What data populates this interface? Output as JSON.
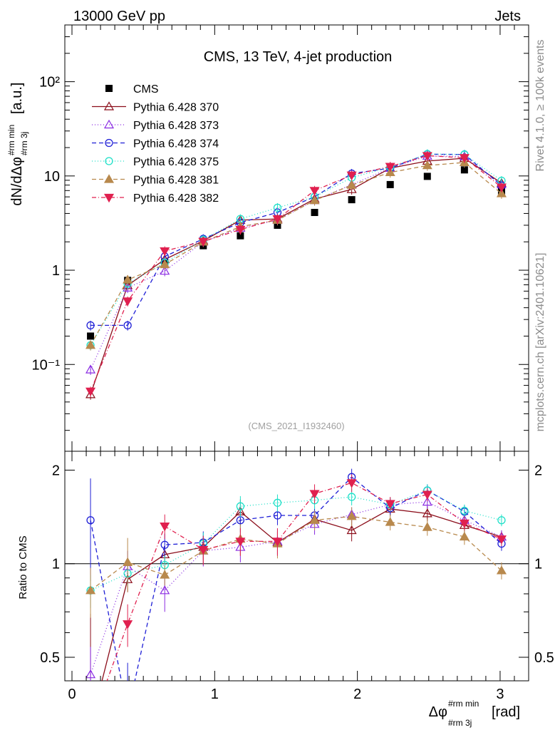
{
  "header": {
    "left": "13000 GeV pp",
    "right": "Jets"
  },
  "side_labels": {
    "rivet": "Rivet 4.1.0, ≥ 100k events",
    "mcplots": "mcplots.cern.ch [arXiv:2401.10621]"
  },
  "chart_data": {
    "type": "scatter",
    "title": "CMS, 13 TeV, 4-jet production",
    "analysis_tag": "(CMS_2021_I1932460)",
    "xlabel": "Δφ^{#rm min}_{#rm 3j} [rad]",
    "xlabel_main": "Δφ",
    "xlabel_sup": "#rm min",
    "xlabel_sub": "#rm 3j",
    "xlabel_unit": "[rad]",
    "ylabel": "dN/dΔφ^{#rm min}_{#rm 3j} [a.u.]",
    "ylabel_main": "dN/dΔφ",
    "ylabel_sup": "#rm min",
    "ylabel_sub": "#rm 3j",
    "ylabel_unit": "[a.u.]",
    "ratio_ylabel": "Ratio to CMS",
    "xlim": [
      -0.05,
      3.2
    ],
    "ylim": [
      0.012,
      400
    ],
    "ratio_ylim": [
      0.42,
      2.3
    ],
    "xticks": [
      0,
      1,
      2,
      3
    ],
    "xtick_labels": [
      "0",
      "1",
      "2",
      "3"
    ],
    "yticks": [
      0.1,
      1,
      10,
      100
    ],
    "ytick_labels": [
      "10⁻¹",
      "1",
      "10",
      "10²"
    ],
    "ratio_yticks": [
      0.5,
      1,
      2
    ],
    "ratio_ytick_labels": [
      "0.5",
      "1",
      "2"
    ],
    "ratio_ytick_labels_right": [
      "0.5",
      "1",
      "2"
    ],
    "x": [
      0.13,
      0.39,
      0.65,
      0.92,
      1.18,
      1.44,
      1.7,
      1.96,
      2.23,
      2.49,
      2.75,
      3.01
    ],
    "reference": {
      "name": "CMS",
      "values": [
        0.2,
        0.78,
        1.22,
        1.82,
        2.32,
        3.0,
        4.1,
        5.6,
        8.1,
        9.9,
        11.6,
        6.9
      ]
    },
    "series": [
      {
        "name": "Pythia 6.428 370",
        "color": "#8b0d1a",
        "marker": "triangle-up-open",
        "dash": "solid",
        "values": [
          0.048,
          0.69,
          1.3,
          2.05,
          3.4,
          3.5,
          5.7,
          7.2,
          12.1,
          14.4,
          15.4,
          8.4
        ],
        "ratio": [
          0.24,
          0.89,
          1.07,
          1.13,
          1.47,
          1.17,
          1.39,
          1.28,
          1.5,
          1.45,
          1.33,
          1.22
        ],
        "ratio_err": [
          0.45,
          0.08,
          0.07,
          0.1,
          0.14,
          0.1,
          0.1,
          0.1,
          0.08,
          0.08,
          0.07,
          0.06
        ]
      },
      {
        "name": "Pythia 6.428 373",
        "color": "#8a2be2",
        "marker": "triangle-up-open",
        "dash": "1,3",
        "values": [
          0.088,
          0.65,
          0.98,
          2.0,
          2.8,
          3.4,
          5.5,
          8.1,
          12.1,
          16.3,
          16.1,
          8.1
        ],
        "ratio": [
          0.44,
          0.98,
          0.82,
          1.1,
          1.13,
          1.18,
          1.34,
          1.44,
          1.55,
          1.58,
          1.38,
          1.22
        ],
        "ratio_err": [
          0.1,
          0.12,
          0.12,
          0.12,
          0.12,
          0.12,
          0.1,
          0.08,
          0.08,
          0.08,
          0.07,
          0.06
        ]
      },
      {
        "name": "Pythia 6.428 374",
        "color": "#1f1fd6",
        "marker": "circle-open",
        "dash": "6,4",
        "values": [
          0.26,
          0.26,
          1.4,
          2.15,
          3.2,
          4.1,
          6.0,
          10.6,
          12.1,
          17.0,
          16.9,
          7.9
        ],
        "ratio": [
          1.38,
          0.33,
          1.15,
          1.17,
          1.38,
          1.43,
          1.43,
          1.9,
          1.51,
          1.72,
          1.47,
          1.16
        ],
        "ratio_err": [
          0.5,
          0.15,
          0.1,
          0.1,
          0.12,
          0.1,
          0.1,
          0.12,
          0.08,
          0.08,
          0.07,
          0.06
        ]
      },
      {
        "name": "Pythia 6.428 375",
        "color": "#1ee0c8",
        "marker": "circle-open",
        "dash": "1,3",
        "values": [
          0.16,
          0.72,
          1.2,
          2.1,
          3.5,
          4.6,
          6.0,
          9.6,
          12.4,
          17.1,
          16.9,
          8.9
        ],
        "ratio": [
          0.82,
          0.93,
          0.99,
          1.16,
          1.53,
          1.57,
          1.6,
          1.64,
          1.55,
          1.72,
          1.48,
          1.38
        ],
        "ratio_err": [
          0.1,
          0.08,
          0.07,
          0.1,
          0.12,
          0.1,
          0.1,
          0.1,
          0.08,
          0.08,
          0.07,
          0.06
        ]
      },
      {
        "name": "Pythia 6.428 381",
        "color": "#b8894d",
        "marker": "triangle-up-filled",
        "dash": "6,4",
        "values": [
          0.16,
          0.79,
          1.15,
          2.0,
          2.9,
          3.4,
          5.5,
          8.0,
          10.9,
          12.9,
          13.9,
          6.5
        ],
        "ratio": [
          0.82,
          1.01,
          0.92,
          1.1,
          1.2,
          1.16,
          1.38,
          1.42,
          1.36,
          1.31,
          1.22,
          0.95
        ],
        "ratio_err": [
          0.15,
          0.2,
          0.07,
          0.1,
          0.14,
          0.12,
          0.1,
          0.1,
          0.08,
          0.08,
          0.07,
          0.06
        ]
      },
      {
        "name": "Pythia 6.428 382",
        "color": "#e0204f",
        "marker": "triangle-down-filled",
        "dash": "6,3,1,3",
        "values": [
          0.052,
          0.47,
          1.6,
          2.02,
          2.7,
          3.5,
          7.0,
          10.2,
          12.6,
          16.4,
          15.6,
          7.6
        ],
        "ratio": [
          0.26,
          0.64,
          1.32,
          1.11,
          1.18,
          1.18,
          1.68,
          1.82,
          1.56,
          1.67,
          1.35,
          1.2
        ],
        "ratio_err": [
          0.12,
          0.1,
          0.12,
          0.12,
          0.12,
          0.12,
          0.12,
          0.12,
          0.08,
          0.08,
          0.07,
          0.06
        ]
      }
    ]
  }
}
